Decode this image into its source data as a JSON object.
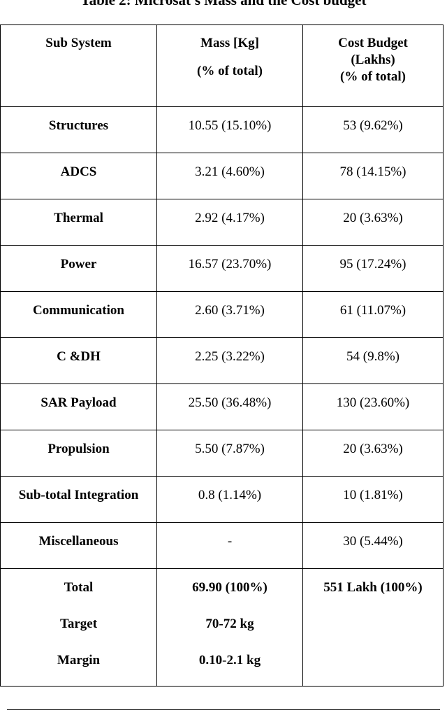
{
  "caption": "Table 2: Microsat's Mass and the Cost budget",
  "table": {
    "header": [
      [
        "Sub System"
      ],
      [
        "Mass [Kg]",
        "(% of total)"
      ],
      [
        "Cost Budget",
        "(Lakhs)",
        "(% of total)"
      ]
    ],
    "rows": [
      [
        "Structures",
        "10.55 (15.10%)",
        "53 (9.62%)"
      ],
      [
        "ADCS",
        "3.21 (4.60%)",
        "78 (14.15%)"
      ],
      [
        "Thermal",
        "2.92 (4.17%)",
        "20 (3.63%)"
      ],
      [
        "Power",
        "16.57 (23.70%)",
        "95 (17.24%)"
      ],
      [
        "Communication",
        "2.60 (3.71%)",
        "61 (11.07%)"
      ],
      [
        "C &DH",
        "2.25 (3.22%)",
        "54 (9.8%)"
      ],
      [
        "SAR Payload",
        "25.50 (36.48%)",
        "130 (23.60%)"
      ],
      [
        "Propulsion",
        "5.50 (7.87%)",
        "20 (3.63%)"
      ],
      [
        "Sub-total Integration",
        "0.8 (1.14%)",
        "10 (1.81%)"
      ],
      [
        "Miscellaneous",
        "-",
        "30 (5.44%)"
      ]
    ],
    "total": [
      [
        "Total",
        "Target",
        "Margin"
      ],
      [
        "69.90 (100%)",
        "70-72 kg",
        "0.10-2.1 kg"
      ],
      [
        "551 Lakh (100%)"
      ]
    ]
  }
}
